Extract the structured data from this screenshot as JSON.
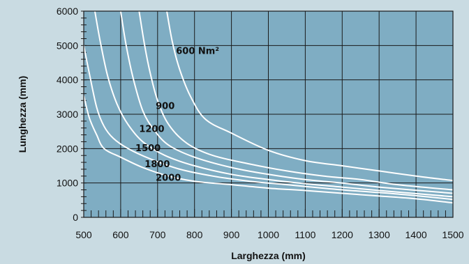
{
  "chart_data": {
    "type": "line",
    "xlabel": "Larghezza (mm)",
    "ylabel": "Lunghezza (mm)",
    "xlim": [
      500,
      1500
    ],
    "ylim": [
      0,
      6000
    ],
    "x_ticks": [
      "500",
      "600",
      "700",
      "800",
      "900",
      "1000",
      "1100",
      "1200",
      "1300",
      "1400",
      "1500"
    ],
    "y_ticks": [
      "0",
      "1000",
      "2000",
      "3000",
      "4000",
      "5000",
      "6000"
    ],
    "grid": true,
    "colors": {
      "plot_bg": "#7fadc3",
      "page_bg": "#c9dbe2",
      "curve": "#ffffff",
      "grid": "#1a1a1a"
    },
    "series": [
      {
        "name": "600 Nm²",
        "points": [
          [
            725,
            6000
          ],
          [
            740,
            5100
          ],
          [
            760,
            4300
          ],
          [
            790,
            3500
          ],
          [
            830,
            2850
          ],
          [
            900,
            2450
          ],
          [
            1000,
            1950
          ],
          [
            1100,
            1650
          ],
          [
            1200,
            1500
          ],
          [
            1300,
            1350
          ],
          [
            1400,
            1200
          ],
          [
            1500,
            1070
          ]
        ]
      },
      {
        "name": "900",
        "points": [
          [
            650,
            6000
          ],
          [
            665,
            5000
          ],
          [
            680,
            4200
          ],
          [
            700,
            3400
          ],
          [
            730,
            2700
          ],
          [
            780,
            2150
          ],
          [
            850,
            1800
          ],
          [
            950,
            1550
          ],
          [
            1050,
            1350
          ],
          [
            1150,
            1200
          ],
          [
            1250,
            1100
          ],
          [
            1350,
            950
          ],
          [
            1500,
            800
          ]
        ]
      },
      {
        "name": "1200",
        "points": [
          [
            600,
            6000
          ],
          [
            615,
            5000
          ],
          [
            635,
            4000
          ],
          [
            660,
            3100
          ],
          [
            690,
            2550
          ],
          [
            730,
            2100
          ],
          [
            800,
            1750
          ],
          [
            900,
            1450
          ],
          [
            1000,
            1250
          ],
          [
            1100,
            1100
          ],
          [
            1200,
            1000
          ],
          [
            1300,
            880
          ],
          [
            1500,
            700
          ]
        ]
      },
      {
        "name": "1500",
        "points": [
          [
            530,
            6000
          ],
          [
            545,
            5100
          ],
          [
            565,
            4100
          ],
          [
            590,
            3300
          ],
          [
            620,
            2700
          ],
          [
            660,
            2200
          ],
          [
            720,
            1800
          ],
          [
            800,
            1500
          ],
          [
            900,
            1250
          ],
          [
            1000,
            1100
          ],
          [
            1100,
            980
          ],
          [
            1200,
            880
          ],
          [
            1300,
            780
          ],
          [
            1500,
            600
          ]
        ]
      },
      {
        "name": "1800",
        "points": [
          [
            500,
            5000
          ],
          [
            515,
            4200
          ],
          [
            535,
            3200
          ],
          [
            555,
            2650
          ],
          [
            580,
            2300
          ],
          [
            620,
            2000
          ],
          [
            680,
            1700
          ],
          [
            760,
            1400
          ],
          [
            850,
            1200
          ],
          [
            950,
            1050
          ],
          [
            1050,
            950
          ],
          [
            1200,
            800
          ],
          [
            1350,
            680
          ],
          [
            1500,
            520
          ]
        ]
      },
      {
        "name": "2000",
        "points": [
          [
            500,
            3550
          ],
          [
            515,
            2900
          ],
          [
            535,
            2400
          ],
          [
            555,
            2000
          ],
          [
            600,
            1750
          ],
          [
            660,
            1450
          ],
          [
            730,
            1200
          ],
          [
            800,
            1050
          ],
          [
            900,
            950
          ],
          [
            1000,
            850
          ],
          [
            1100,
            780
          ],
          [
            1200,
            700
          ],
          [
            1300,
            620
          ],
          [
            1400,
            540
          ],
          [
            1500,
            420
          ]
        ]
      }
    ]
  }
}
